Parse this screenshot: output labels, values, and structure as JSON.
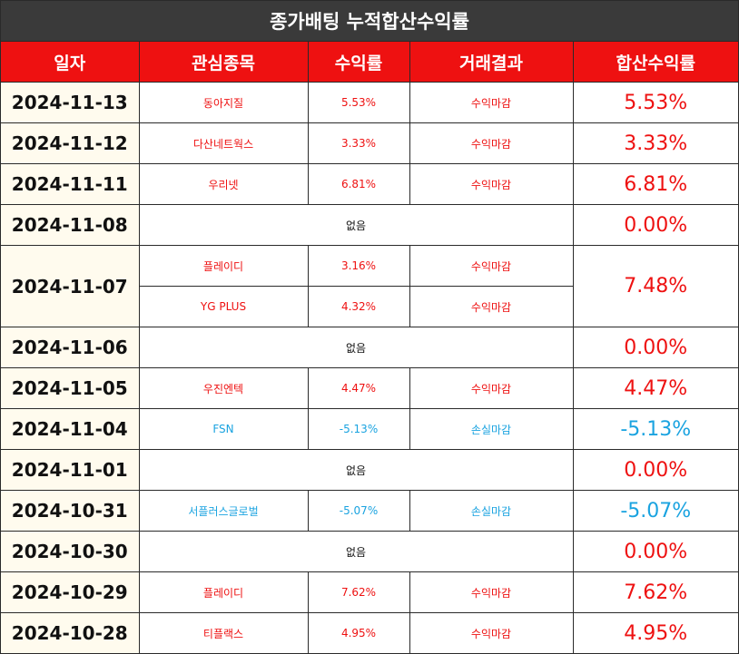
{
  "title": "종가배팅 누적합산수익률",
  "headers": [
    "일자",
    "관심종목",
    "수익률",
    "거래결과",
    "합산수익률"
  ],
  "none_label": "없음",
  "colors": {
    "header_bg": "#ee1111",
    "title_bg": "#3a3a3a",
    "profit": "#ee1111",
    "loss": "#1aa3e0",
    "date_bg": "#fffbee"
  },
  "rows": [
    {
      "date": "2024-11-13",
      "total": "5.53%",
      "total_color": "red",
      "stocks": [
        {
          "name": "동아지질",
          "return": "5.53%",
          "result": "수익마감",
          "color": "red"
        }
      ]
    },
    {
      "date": "2024-11-12",
      "total": "3.33%",
      "total_color": "red",
      "stocks": [
        {
          "name": "다산네트웍스",
          "return": "3.33%",
          "result": "수익마감",
          "color": "red"
        }
      ]
    },
    {
      "date": "2024-11-11",
      "total": "6.81%",
      "total_color": "red",
      "stocks": [
        {
          "name": "우리넷",
          "return": "6.81%",
          "result": "수익마감",
          "color": "red"
        }
      ]
    },
    {
      "date": "2024-11-08",
      "total": "0.00%",
      "total_color": "red",
      "stocks": []
    },
    {
      "date": "2024-11-07",
      "total": "7.48%",
      "total_color": "red",
      "stocks": [
        {
          "name": "플레이디",
          "return": "3.16%",
          "result": "수익마감",
          "color": "red"
        },
        {
          "name": "YG PLUS",
          "return": "4.32%",
          "result": "수익마감",
          "color": "red"
        }
      ]
    },
    {
      "date": "2024-11-06",
      "total": "0.00%",
      "total_color": "red",
      "stocks": []
    },
    {
      "date": "2024-11-05",
      "total": "4.47%",
      "total_color": "red",
      "stocks": [
        {
          "name": "우진엔텍",
          "return": "4.47%",
          "result": "수익마감",
          "color": "red"
        }
      ]
    },
    {
      "date": "2024-11-04",
      "total": "-5.13%",
      "total_color": "blue",
      "stocks": [
        {
          "name": "FSN",
          "return": "-5.13%",
          "result": "손실마감",
          "color": "blue"
        }
      ]
    },
    {
      "date": "2024-11-01",
      "total": "0.00%",
      "total_color": "red",
      "stocks": []
    },
    {
      "date": "2024-10-31",
      "total": "-5.07%",
      "total_color": "blue",
      "stocks": [
        {
          "name": "서플러스글로벌",
          "return": "-5.07%",
          "result": "손실마감",
          "color": "blue"
        }
      ]
    },
    {
      "date": "2024-10-30",
      "total": "0.00%",
      "total_color": "red",
      "stocks": []
    },
    {
      "date": "2024-10-29",
      "total": "7.62%",
      "total_color": "red",
      "stocks": [
        {
          "name": "플레이디",
          "return": "7.62%",
          "result": "수익마감",
          "color": "red"
        }
      ]
    },
    {
      "date": "2024-10-28",
      "total": "4.95%",
      "total_color": "red",
      "stocks": [
        {
          "name": "티플랙스",
          "return": "4.95%",
          "result": "수익마감",
          "color": "red"
        }
      ]
    }
  ]
}
